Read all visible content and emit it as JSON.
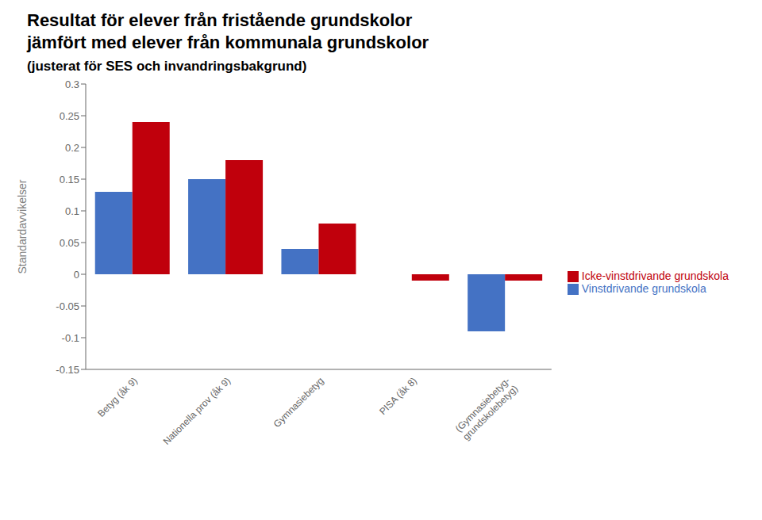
{
  "chart_data": {
    "type": "bar",
    "title": "Resultat för elever från fristående grundskolor\njämfört med elever från kommunala grundskolor",
    "subtitle": "(justerat för SES och invandringsbakgrund)",
    "y_label": "Standardavvikelser",
    "categories": [
      "Betyg (åk 9)",
      "Nationella prov (åk 9)",
      "Gymnasiebetyg",
      "PISA (åk 8)",
      "(Gymnasiebetyg-\ngrundskolebetyg)"
    ],
    "series": [
      {
        "name": "Vinstdrivande grundskola",
        "color": "#4472C4",
        "values": [
          0.13,
          0.15,
          0.04,
          0.0,
          -0.09
        ]
      },
      {
        "name": "Icke-vinstdrivande grundskola",
        "color": "#C0000C",
        "values": [
          0.24,
          0.18,
          0.08,
          -0.01,
          -0.01
        ]
      }
    ],
    "ylim": [
      -0.15,
      0.3
    ],
    "yticks": [
      -0.15,
      -0.1,
      -0.05,
      0,
      0.05,
      0.1,
      0.15,
      0.2,
      0.25,
      0.3
    ],
    "grid": false,
    "legend": "right"
  }
}
